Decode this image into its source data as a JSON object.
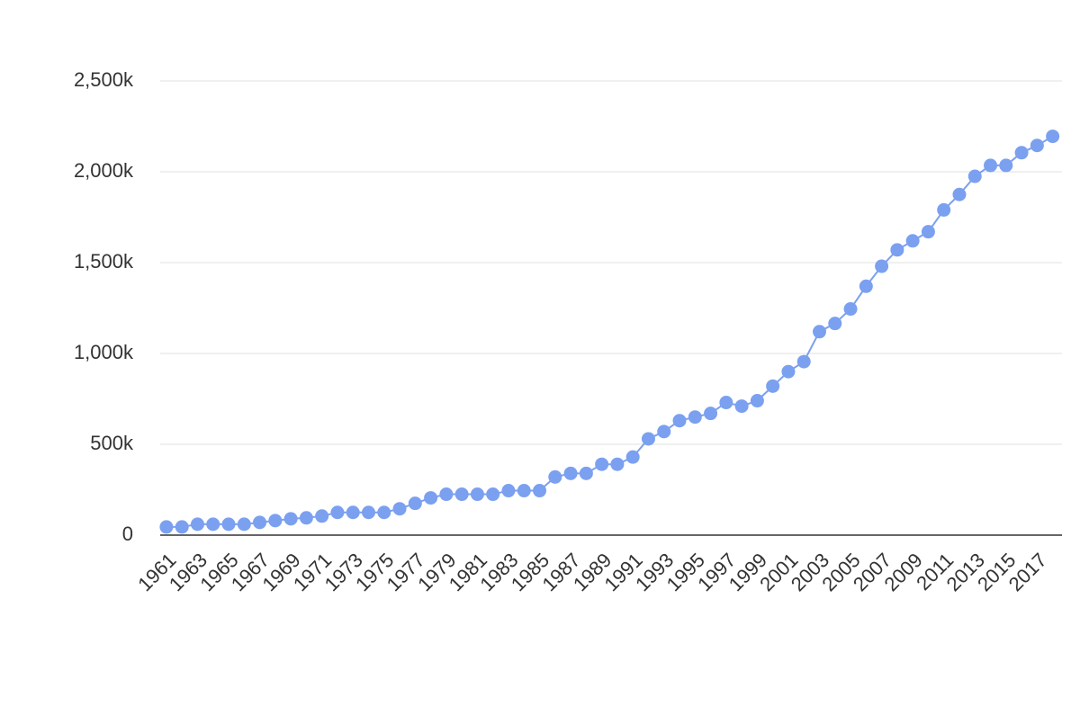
{
  "chart_data": {
    "type": "line",
    "x": [
      1961,
      1962,
      1963,
      1964,
      1965,
      1966,
      1967,
      1968,
      1969,
      1970,
      1971,
      1972,
      1973,
      1974,
      1975,
      1976,
      1977,
      1978,
      1979,
      1980,
      1981,
      1982,
      1983,
      1984,
      1985,
      1986,
      1987,
      1988,
      1989,
      1990,
      1991,
      1992,
      1993,
      1994,
      1995,
      1996,
      1997,
      1998,
      1999,
      2000,
      2001,
      2002,
      2003,
      2004,
      2005,
      2006,
      2007,
      2008,
      2009,
      2010,
      2011,
      2012,
      2013,
      2014,
      2015,
      2016,
      2017,
      2018
    ],
    "values": [
      45,
      45,
      60,
      60,
      60,
      60,
      70,
      80,
      90,
      95,
      105,
      125,
      125,
      125,
      125,
      145,
      175,
      205,
      225,
      225,
      225,
      225,
      245,
      245,
      245,
      320,
      340,
      340,
      390,
      390,
      430,
      530,
      570,
      630,
      650,
      670,
      730,
      710,
      740,
      820,
      900,
      955,
      1120,
      1165,
      1245,
      1370,
      1480,
      1570,
      1620,
      1670,
      1790,
      1875,
      1975,
      2035,
      2035,
      2105,
      2145,
      2195
    ],
    "color": "#7ba0f0",
    "xlim": [
      1960.6,
      2018.6
    ],
    "xticks": [
      1961,
      1963,
      1965,
      1967,
      1969,
      1971,
      1973,
      1975,
      1977,
      1979,
      1981,
      1983,
      1985,
      1987,
      1989,
      1991,
      1993,
      1995,
      1997,
      1999,
      2001,
      2003,
      2005,
      2007,
      2009,
      2011,
      2013,
      2015,
      2017
    ],
    "ylim": [
      0,
      2500
    ],
    "yticks": [
      0,
      {
        "value": 500,
        "label": "500k"
      },
      {
        "value": 1000,
        "label": "1,000k"
      },
      {
        "value": 1500,
        "label": "1,500k"
      },
      {
        "value": 2000,
        "label": "2,000k"
      },
      {
        "value": 2500,
        "label": "2,500k"
      }
    ],
    "grid": true
  }
}
